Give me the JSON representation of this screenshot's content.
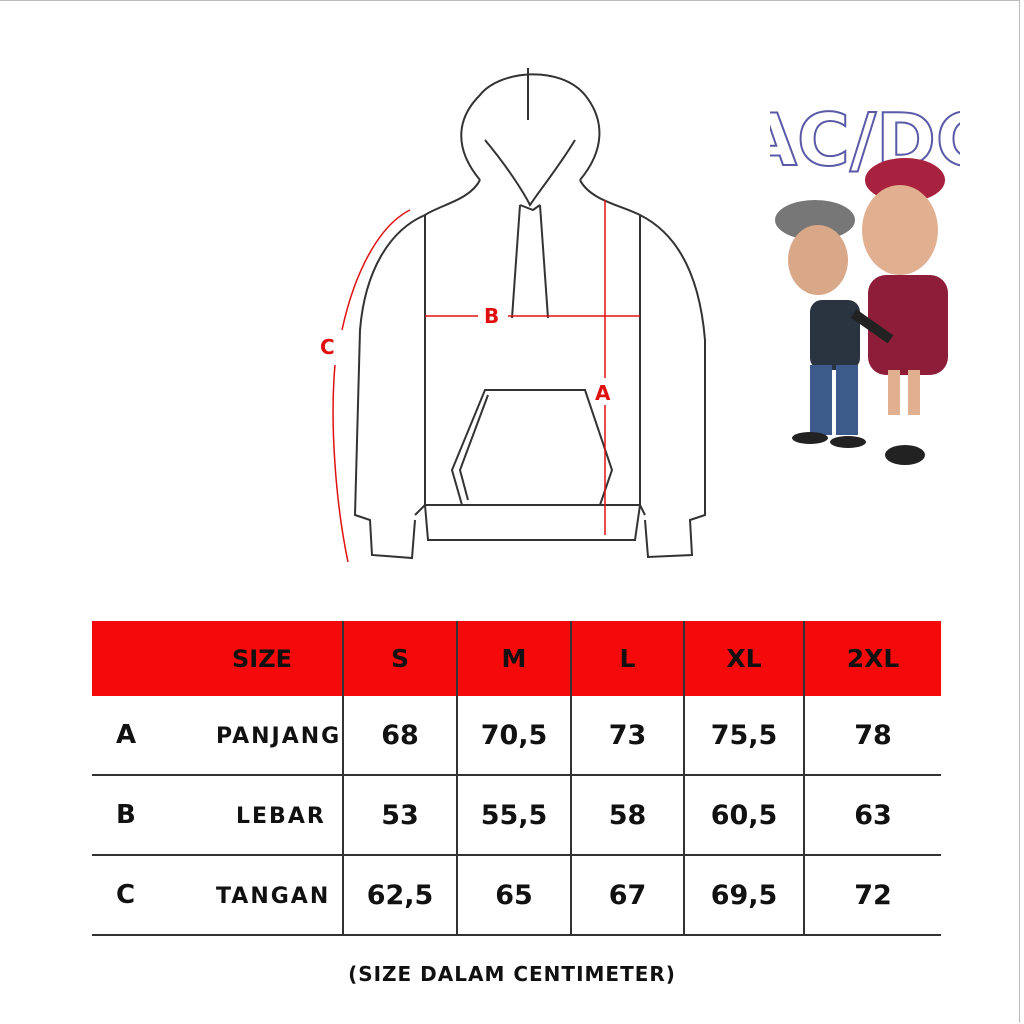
{
  "diagram": {
    "labels": {
      "a": "A",
      "b": "B",
      "c": "C"
    },
    "measure_color": "#e01010"
  },
  "logo": {
    "text": "AC/DC"
  },
  "table": {
    "header": [
      "SIZE",
      "S",
      "M",
      "L",
      "XL",
      "2XL"
    ],
    "header_color": "#f40a0a",
    "rows": [
      {
        "key": "A",
        "name": "PANJANG",
        "values": [
          "68",
          "70,5",
          "73",
          "75,5",
          "78"
        ]
      },
      {
        "key": "B",
        "name": "LEBAR",
        "values": [
          "53",
          "55,5",
          "58",
          "60,5",
          "63"
        ]
      },
      {
        "key": "C",
        "name": "TANGAN",
        "values": [
          "62,5",
          "65",
          "67",
          "69,5",
          "72"
        ]
      }
    ]
  },
  "footer": "(SIZE DALAM CENTIMETER)"
}
